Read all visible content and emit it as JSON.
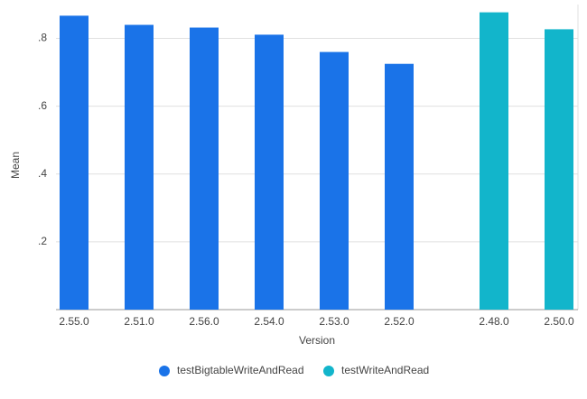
{
  "chart_data": {
    "type": "bar",
    "x_label": "Version",
    "y_label": "Mean",
    "categories": [
      "2.55.0",
      "2.51.0",
      "2.56.0",
      "2.54.0",
      "2.53.0",
      "2.52.0",
      "2.48.0",
      "2.50.0"
    ],
    "series": [
      {
        "name": "testBigtableWriteAndRead",
        "color": "#1a73e8",
        "values": [
          0.867,
          0.84,
          0.832,
          0.811,
          0.76,
          0.725,
          null,
          null
        ]
      },
      {
        "name": "testWriteAndRead",
        "color": "#12b5cb",
        "values": [
          null,
          null,
          null,
          null,
          null,
          null,
          0.877,
          0.827
        ]
      }
    ],
    "ylim": [
      0,
      0.9
    ],
    "yticks": [
      {
        "value": 0.2,
        "label": ".2"
      },
      {
        "value": 0.4,
        "label": ".4"
      },
      {
        "value": 0.6,
        "label": ".6"
      },
      {
        "value": 0.8,
        "label": ".8"
      }
    ],
    "grid": true,
    "legend": "bottom"
  }
}
